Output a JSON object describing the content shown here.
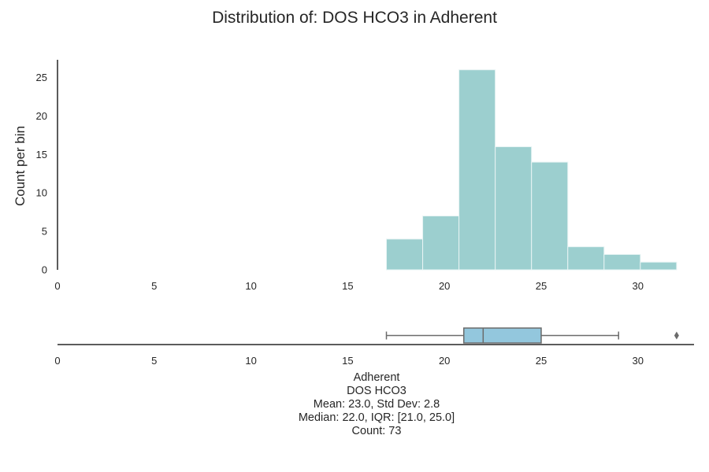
{
  "title": "Distribution of: DOS HCO3 in Adherent",
  "colors": {
    "hist_fill": "#9ccfcf",
    "hist_edge": "#e8f4f4",
    "box_fill": "#93c7dd",
    "box_edge": "#6b6b6b",
    "axis": "#262626"
  },
  "chart_data": [
    {
      "type": "bar",
      "kind": "histogram",
      "ylabel": "Count per bin",
      "xlim": [
        0,
        32.9
      ],
      "ylim": [
        0,
        27.3
      ],
      "x_ticks": [
        "0",
        "5",
        "10",
        "15",
        "20",
        "25",
        "30"
      ],
      "y_ticks": [
        "0",
        "5",
        "10",
        "15",
        "20",
        "25"
      ],
      "bins": [
        {
          "start": 17.0,
          "end": 18.875,
          "count": 4
        },
        {
          "start": 18.875,
          "end": 20.75,
          "count": 7
        },
        {
          "start": 20.75,
          "end": 22.625,
          "count": 26
        },
        {
          "start": 22.625,
          "end": 24.5,
          "count": 16
        },
        {
          "start": 24.5,
          "end": 26.375,
          "count": 14
        },
        {
          "start": 26.375,
          "end": 28.25,
          "count": 3
        },
        {
          "start": 28.25,
          "end": 30.125,
          "count": 2
        },
        {
          "start": 30.125,
          "end": 32.0,
          "count": 1
        }
      ],
      "grid": false
    },
    {
      "type": "box",
      "xlim": [
        0,
        32.9
      ],
      "x_ticks": [
        "0",
        "5",
        "10",
        "15",
        "20",
        "25",
        "30"
      ],
      "whisker_low": 17,
      "q1": 21,
      "median": 22,
      "q3": 25,
      "whisker_high": 29,
      "outliers": [
        32
      ],
      "grid": false
    }
  ],
  "info": {
    "group": "Adherent",
    "variable": "DOS HCO3",
    "mean_line": "Mean: 23.0, Std Dev: 2.8",
    "median_line": "Median: 22.0, IQR: [21.0, 25.0]",
    "count_line": "Count: 73"
  }
}
